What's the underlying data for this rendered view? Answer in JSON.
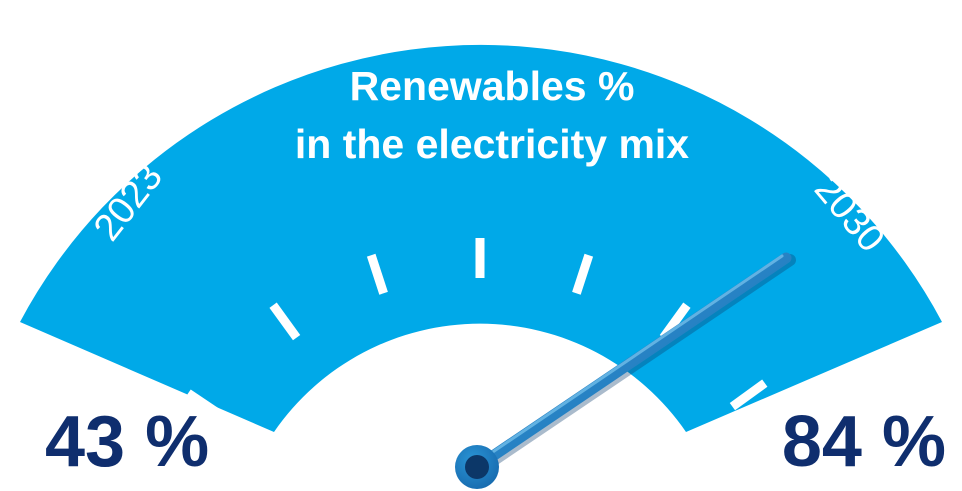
{
  "gauge": {
    "title_line1": "Renewables %",
    "title_line2": "in the electricity mix",
    "start_label": "2023",
    "end_label": "2030",
    "start_value_label": "43 %",
    "end_value_label": "84 %",
    "start_value": 43,
    "end_value": 84,
    "needle_level": 1.0,
    "tick_count": 7
  },
  "colors": {
    "band": "#00a9e8",
    "band_shadow": "#0390c6",
    "value_text": "#0f2e6e",
    "needle": "#1b72b8",
    "needle_highlight": "#5fb8ea",
    "hub_outer": "#1f85c8",
    "hub_inner": "#0c3768"
  },
  "icons": {
    "needle": "gauge-needle-icon",
    "hub": "gauge-hub-icon"
  }
}
